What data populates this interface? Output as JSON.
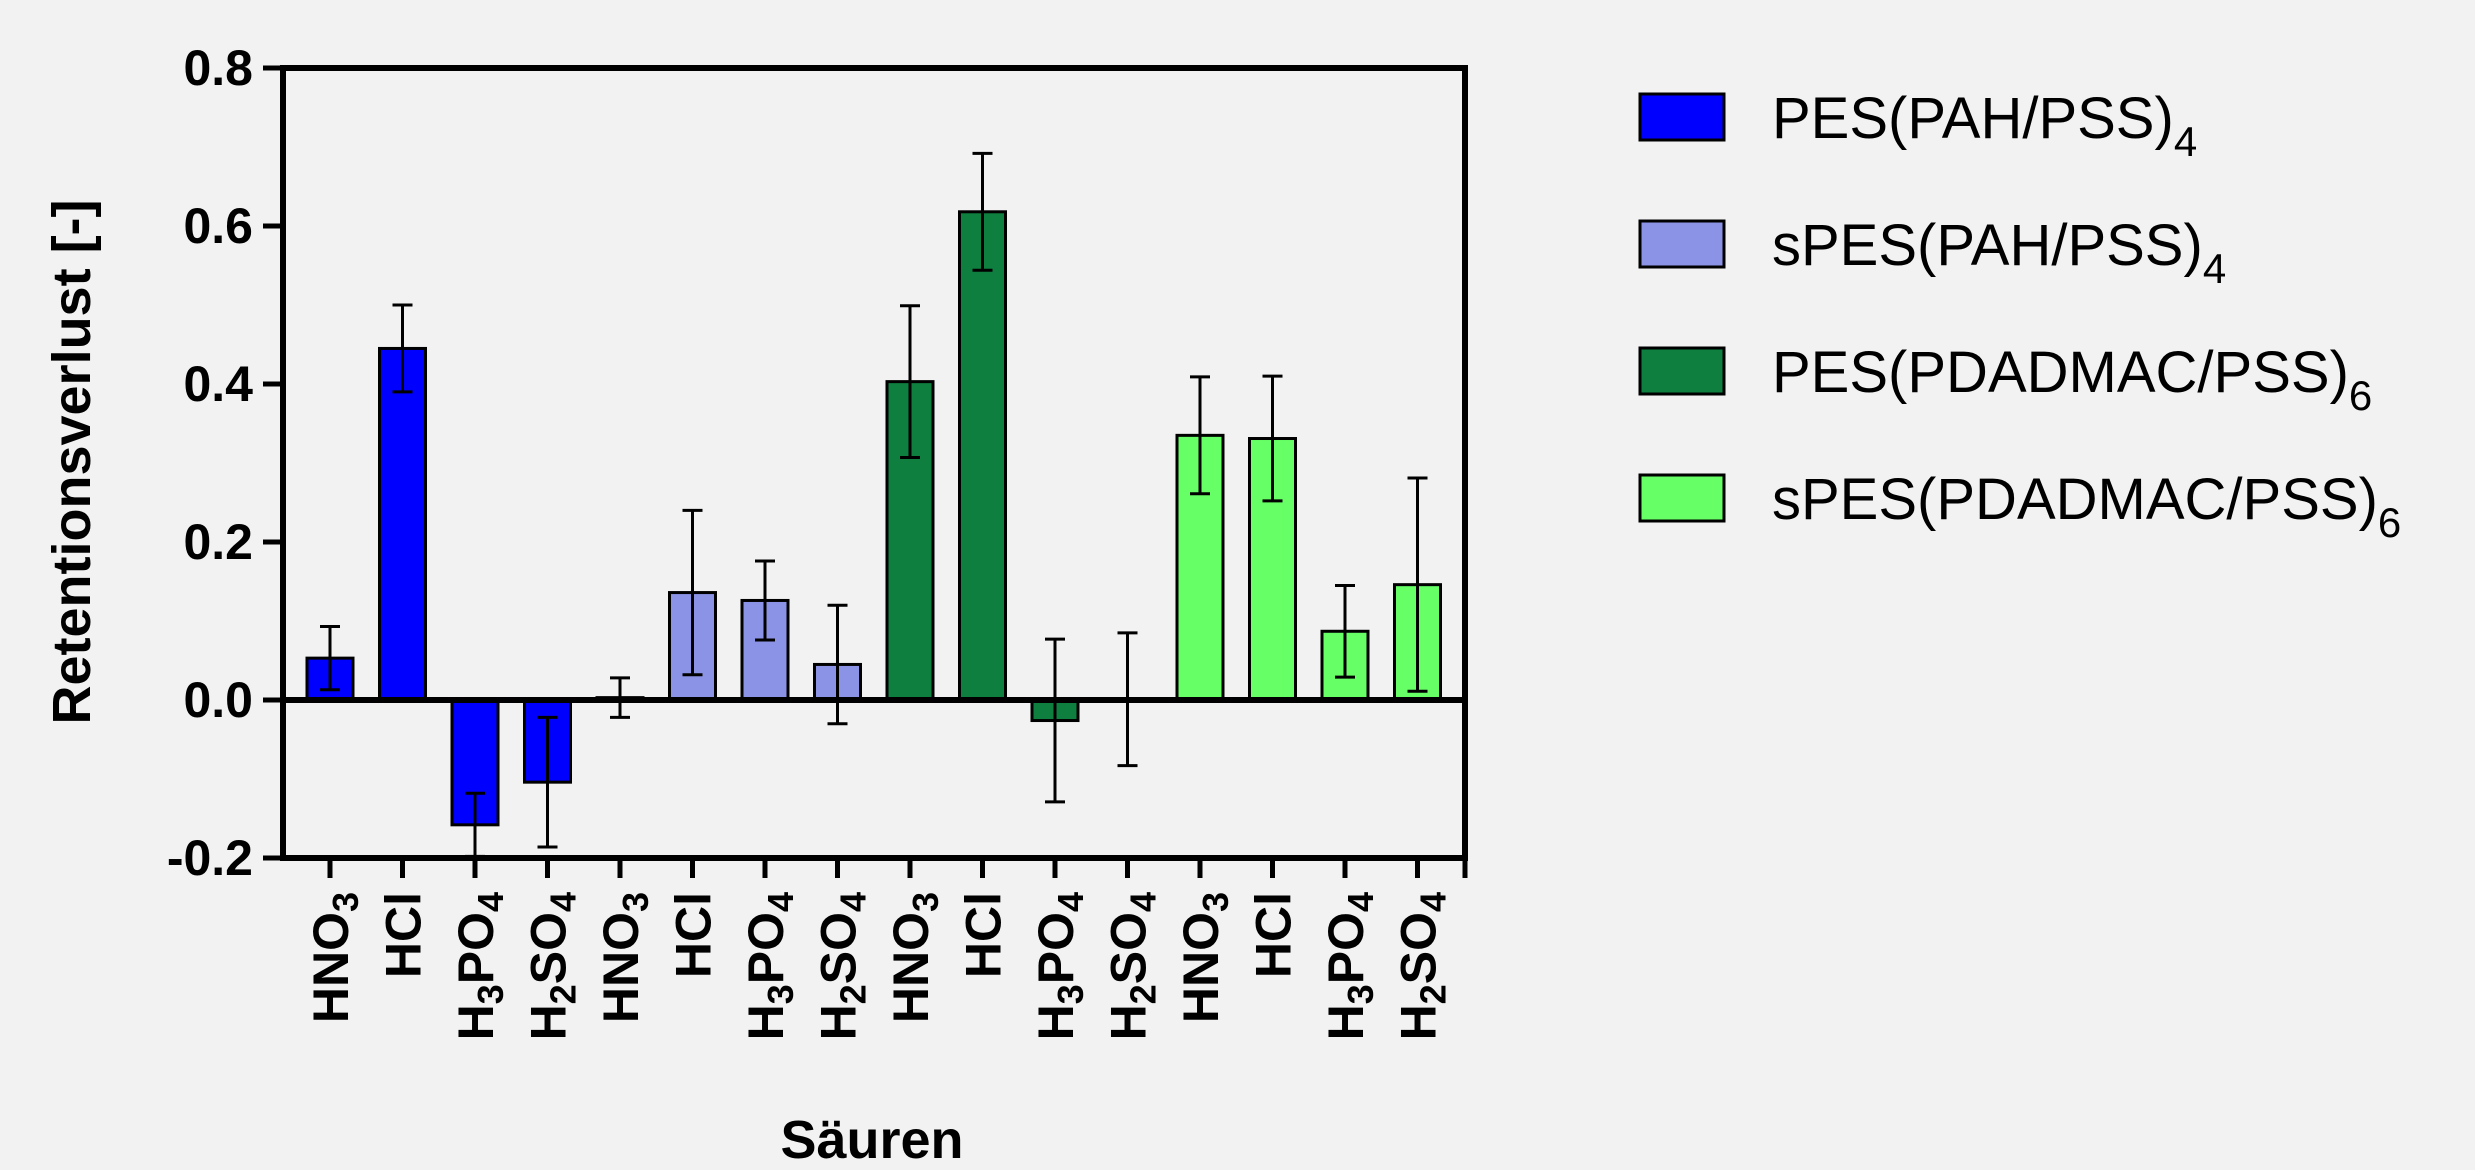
{
  "chart_data": {
    "type": "bar",
    "xlabel": "Säuren",
    "ylabel": "Retentionsverlust [-]",
    "ylim": [
      -0.2,
      0.8
    ],
    "yticks": [
      "0.8",
      "0.6",
      "0.4",
      "0.2",
      "0.0",
      "-0.2"
    ],
    "ytick_values": [
      0.8,
      0.6,
      0.4,
      0.2,
      0.0,
      -0.2
    ],
    "grid": false,
    "legend_position": "right",
    "categories": [
      {
        "base": "HNO",
        "sub1": "3",
        "mid": "",
        "sub2": ""
      },
      {
        "base": "HCl",
        "sub1": "",
        "mid": "",
        "sub2": ""
      },
      {
        "base": "H",
        "sub1": "3",
        "mid": "PO",
        "sub2": "4"
      },
      {
        "base": "H",
        "sub1": "2",
        "mid": "SO",
        "sub2": "4"
      }
    ],
    "series": [
      {
        "name": "PES(PAH/PSS)",
        "name_sub": "4",
        "color": "#0000ff",
        "values": [
          0.053,
          0.445,
          -0.158,
          -0.104
        ],
        "errors": [
          0.04,
          0.055,
          0.04,
          0.082
        ]
      },
      {
        "name": "sPES(PAH/PSS)",
        "name_sub": "4",
        "color": "#8b93e6",
        "values": [
          0.003,
          0.136,
          0.126,
          0.045
        ],
        "errors": [
          0.025,
          0.104,
          0.05,
          0.075
        ]
      },
      {
        "name": "PES(PDADMAC/PSS)",
        "name_sub": "6",
        "color": "#0e7f3f",
        "values": [
          0.403,
          0.618,
          -0.026,
          0.001
        ],
        "errors": [
          0.096,
          0.074,
          0.103,
          0.084
        ]
      },
      {
        "name": "sPES(PDADMAC/PSS)",
        "name_sub": "6",
        "color": "#66ff66",
        "values": [
          0.335,
          0.331,
          0.087,
          0.146
        ],
        "errors": [
          0.074,
          0.079,
          0.058,
          0.135
        ]
      }
    ]
  }
}
